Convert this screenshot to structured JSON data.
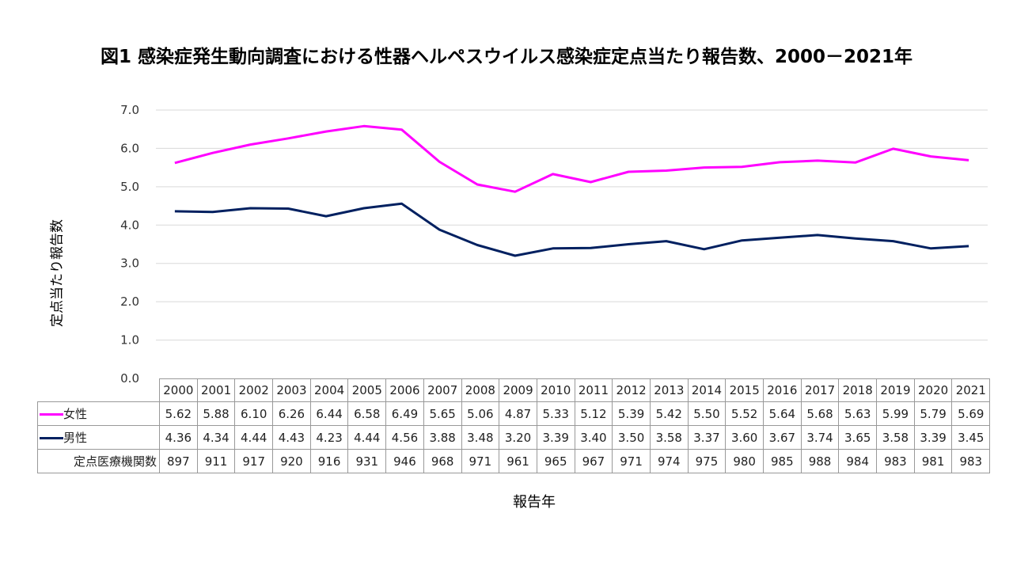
{
  "title": "図1 感染症発生動向調査における性器ヘルペスウイルス感染症定点当たり報告数、2000－2021年",
  "chart_data": {
    "type": "line",
    "title": "図1 感染症発生動向調査における性器ヘルペスウイルス感染症定点当たり報告数、2000－2021年",
    "xlabel": "報告年",
    "ylabel": "定点当たり報告数",
    "ylim": [
      0,
      7
    ],
    "yticks": [
      "0.0",
      "1.0",
      "2.0",
      "3.0",
      "4.0",
      "5.0",
      "6.0",
      "7.0"
    ],
    "grid": true,
    "categories": [
      "2000",
      "2001",
      "2002",
      "2003",
      "2004",
      "2005",
      "2006",
      "2007",
      "2008",
      "2009",
      "2010",
      "2011",
      "2012",
      "2013",
      "2014",
      "2015",
      "2016",
      "2017",
      "2018",
      "2019",
      "2020",
      "2021"
    ],
    "series": [
      {
        "name": "女性",
        "color": "#ff00ff",
        "values": [
          "5.62",
          "5.88",
          "6.10",
          "6.26",
          "6.44",
          "6.58",
          "6.49",
          "5.65",
          "5.06",
          "4.87",
          "5.33",
          "5.12",
          "5.39",
          "5.42",
          "5.50",
          "5.52",
          "5.64",
          "5.68",
          "5.63",
          "5.99",
          "5.79",
          "5.69"
        ]
      },
      {
        "name": "男性",
        "color": "#002060",
        "values": [
          "4.36",
          "4.34",
          "4.44",
          "4.43",
          "4.23",
          "4.44",
          "4.56",
          "3.88",
          "3.48",
          "3.20",
          "3.39",
          "3.40",
          "3.50",
          "3.58",
          "3.37",
          "3.60",
          "3.67",
          "3.74",
          "3.65",
          "3.58",
          "3.39",
          "3.45"
        ]
      }
    ],
    "table_extra_row": {
      "name": "定点医療機関数",
      "values": [
        "897",
        "911",
        "917",
        "920",
        "916",
        "931",
        "946",
        "968",
        "971",
        "961",
        "965",
        "967",
        "971",
        "974",
        "975",
        "980",
        "985",
        "988",
        "984",
        "983",
        "981",
        "983"
      ]
    }
  }
}
